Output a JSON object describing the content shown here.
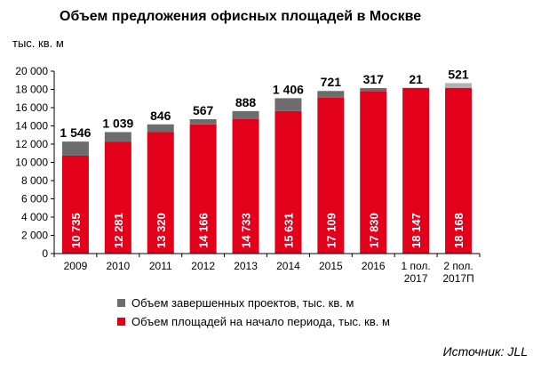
{
  "chart_data": {
    "type": "bar",
    "stacked": true,
    "title": "Объем предложения офисных площадей в Москве",
    "ylabel": "тыс. кв. м",
    "ylim": [
      0,
      20000
    ],
    "yticks": [
      "0",
      "2 000",
      "4 000",
      "6 000",
      "8 000",
      "10 000",
      "12 000",
      "14 000",
      "16 000",
      "18 000",
      "20 000"
    ],
    "ytick_values": [
      0,
      2000,
      4000,
      6000,
      8000,
      10000,
      12000,
      14000,
      16000,
      18000,
      20000
    ],
    "categories": [
      [
        "2009"
      ],
      [
        "2010"
      ],
      [
        "2011"
      ],
      [
        "2012"
      ],
      [
        "2013"
      ],
      [
        "2014"
      ],
      [
        "2015"
      ],
      [
        "2016"
      ],
      [
        "1 пол.",
        "2017"
      ],
      [
        "2 пол.",
        "2017П"
      ]
    ],
    "series": [
      {
        "name": "Объем площадей на начало периода, тыс. кв. м",
        "color": "#e3001b",
        "values": [
          10735,
          12281,
          13320,
          14166,
          14733,
          15631,
          17109,
          17830,
          18147,
          18168
        ],
        "labels": [
          "10 735",
          "12 281",
          "13 320",
          "14 166",
          "14 733",
          "15 631",
          "17 109",
          "17 830",
          "18 147",
          "18 168"
        ]
      },
      {
        "name": "Объем завершенных проектов, тыс. кв. м",
        "color": "#6d6d6d",
        "last_color": "#b3b3b3",
        "values": [
          1546,
          1039,
          846,
          567,
          888,
          1406,
          721,
          317,
          21,
          521
        ],
        "labels": [
          "1 546",
          "1 039",
          "846",
          "567",
          "888",
          "1 406",
          "721",
          "317",
          "21",
          "521"
        ]
      }
    ],
    "legend_position": "bottom",
    "grid": false
  },
  "source": "Источник: JLL"
}
